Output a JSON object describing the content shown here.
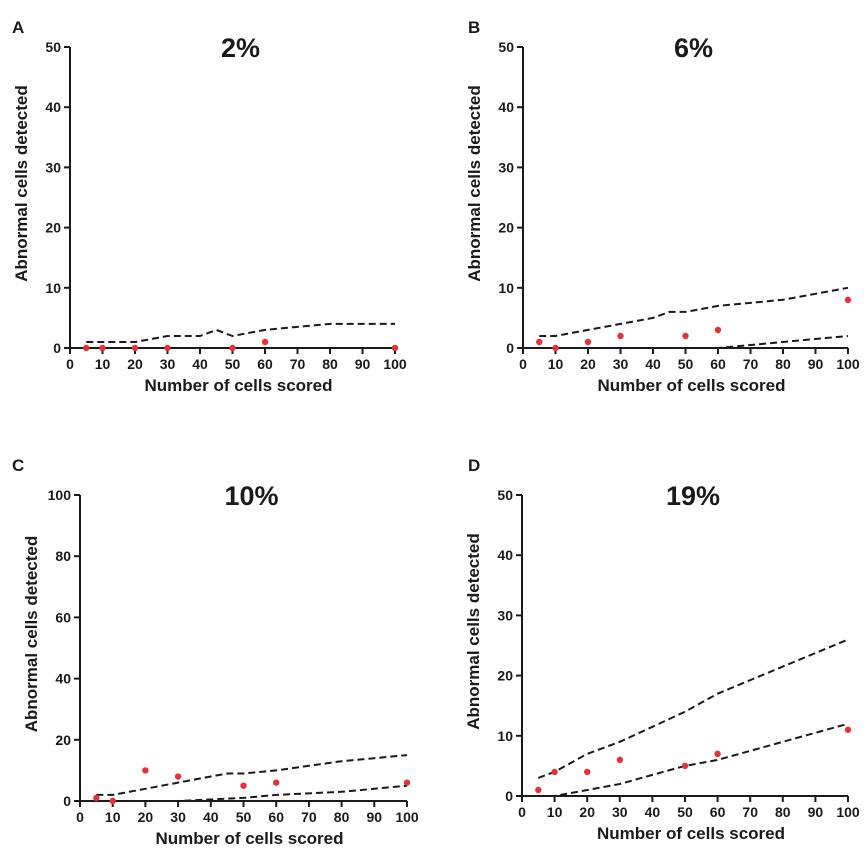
{
  "colors": {
    "ink": "#1a1a1a",
    "point": "#e8303a",
    "background": "#ffffff"
  },
  "chart_data": [
    {
      "type": "line",
      "panel": "A",
      "title": "2%",
      "xlabel": "Number of cells scored",
      "ylabel": "Abnormal cells detected",
      "xlim": [
        0,
        100
      ],
      "ylim": [
        0,
        50
      ],
      "xticks": [
        0,
        10,
        20,
        30,
        40,
        50,
        60,
        70,
        80,
        90,
        100
      ],
      "yticks": [
        0,
        10,
        20,
        30,
        40,
        50
      ],
      "series": [
        {
          "role": "upper-bound",
          "style": "dashed",
          "x": [
            5,
            10,
            20,
            30,
            40,
            45,
            50,
            60,
            70,
            80,
            90,
            100
          ],
          "y": [
            1,
            1,
            1,
            2,
            2,
            3,
            2,
            3,
            3.5,
            4,
            4,
            4
          ]
        },
        {
          "role": "lower-bound",
          "style": "dashed",
          "x": [
            5,
            100
          ],
          "y": [
            0,
            0
          ]
        },
        {
          "role": "observed",
          "style": "points",
          "x": [
            5,
            10,
            20,
            30,
            50,
            60,
            100
          ],
          "y": [
            0,
            0,
            0,
            0,
            0,
            1,
            0
          ]
        }
      ]
    },
    {
      "type": "line",
      "panel": "B",
      "title": "6%",
      "xlabel": "Number of cells scored",
      "ylabel": "Abnormal cells detected",
      "xlim": [
        0,
        100
      ],
      "ylim": [
        0,
        50
      ],
      "xticks": [
        0,
        10,
        20,
        30,
        40,
        50,
        60,
        70,
        80,
        90,
        100
      ],
      "yticks": [
        0,
        10,
        20,
        30,
        40,
        50
      ],
      "series": [
        {
          "role": "upper-bound",
          "style": "dashed",
          "x": [
            5,
            10,
            20,
            30,
            40,
            45,
            50,
            60,
            70,
            80,
            90,
            100
          ],
          "y": [
            2,
            2,
            3,
            4,
            5,
            6,
            6,
            7,
            7.5,
            8,
            9,
            10
          ]
        },
        {
          "role": "lower-bound",
          "style": "dashed",
          "x": [
            5,
            10,
            60,
            70,
            80,
            90,
            100
          ],
          "y": [
            0,
            0,
            0,
            0.5,
            1,
            1.5,
            2
          ]
        },
        {
          "role": "observed",
          "style": "points",
          "x": [
            5,
            10,
            20,
            30,
            50,
            60,
            100
          ],
          "y": [
            1,
            0,
            1,
            2,
            2,
            3,
            8
          ]
        }
      ]
    },
    {
      "type": "line",
      "panel": "C",
      "title": "10%",
      "xlabel": "Number of cells scored",
      "ylabel": "Abnormal cells detected",
      "xlim": [
        0,
        100
      ],
      "ylim": [
        0,
        100
      ],
      "xticks": [
        0,
        10,
        20,
        30,
        40,
        50,
        60,
        70,
        80,
        90,
        100
      ],
      "yticks": [
        0,
        20,
        40,
        60,
        80,
        100
      ],
      "series": [
        {
          "role": "upper-bound",
          "style": "dashed",
          "x": [
            5,
            10,
            20,
            30,
            40,
            45,
            50,
            60,
            70,
            80,
            90,
            100
          ],
          "y": [
            2,
            2,
            4,
            6,
            8,
            9,
            9,
            10,
            11.5,
            13,
            14,
            15
          ]
        },
        {
          "role": "lower-bound",
          "style": "dashed",
          "x": [
            5,
            10,
            30,
            50,
            60,
            80,
            100
          ],
          "y": [
            0,
            0,
            0,
            1,
            2,
            3,
            5
          ]
        },
        {
          "role": "observed",
          "style": "points",
          "x": [
            5,
            10,
            20,
            30,
            50,
            60,
            100
          ],
          "y": [
            1,
            0,
            10,
            8,
            5,
            6,
            6
          ]
        }
      ]
    },
    {
      "type": "line",
      "panel": "D",
      "title": "19%",
      "xlabel": "Number of cells scored",
      "ylabel": "Abnormal cells detected",
      "xlim": [
        0,
        100
      ],
      "ylim": [
        0,
        50
      ],
      "xticks": [
        0,
        10,
        20,
        30,
        40,
        50,
        60,
        70,
        80,
        90,
        100
      ],
      "yticks": [
        0,
        10,
        20,
        30,
        40,
        50
      ],
      "series": [
        {
          "role": "upper-bound",
          "style": "dashed",
          "x": [
            5,
            10,
            20,
            30,
            40,
            50,
            60,
            80,
            100
          ],
          "y": [
            3,
            4,
            7,
            9,
            11.5,
            14,
            17,
            21.5,
            26
          ]
        },
        {
          "role": "lower-bound",
          "style": "dashed",
          "x": [
            5,
            10,
            20,
            30,
            40,
            50,
            60,
            80,
            100
          ],
          "y": [
            0,
            0,
            1,
            2,
            3.5,
            5,
            6,
            9,
            12
          ]
        },
        {
          "role": "observed",
          "style": "points",
          "x": [
            5,
            10,
            20,
            30,
            50,
            60,
            100
          ],
          "y": [
            1,
            4,
            4,
            6,
            5,
            7,
            11
          ]
        }
      ]
    }
  ]
}
